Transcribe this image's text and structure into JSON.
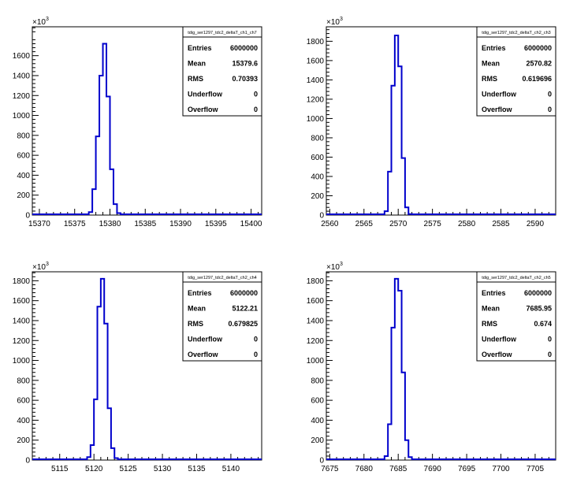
{
  "chart_data": [
    {
      "type": "bar",
      "title": "tdig_ser1297_tdc2_deltaT_ch1_ch7",
      "y_exponent": "3",
      "xlim": [
        15369.0,
        15401.5
      ],
      "ylim": [
        0,
        1890
      ],
      "x_ticks": [
        "15370",
        "15375",
        "15380",
        "15385",
        "15390",
        "15395",
        "15400"
      ],
      "y_ticks": [
        "0",
        "200",
        "400",
        "600",
        "800",
        "1000",
        "1200",
        "1400",
        "1600"
      ],
      "bins": {
        "x": [
          15376.5,
          15377,
          15377.5,
          15378,
          15378.5,
          15379,
          15379.5,
          15380,
          15380.5,
          15381,
          15381.5
        ],
        "values": [
          5,
          30,
          260,
          790,
          1400,
          1720,
          1190,
          460,
          110,
          20,
          3
        ]
      },
      "stats": [
        {
          "label": "Entries",
          "value": "6000000"
        },
        {
          "label": "Mean",
          "value": "15379.6"
        },
        {
          "label": "RMS",
          "value": "0.70393"
        },
        {
          "label": "Underflow",
          "value": "0"
        },
        {
          "label": "Overflow",
          "value": "0"
        }
      ]
    },
    {
      "type": "bar",
      "title": "tdig_ser1297_tdc2_deltaT_ch2_ch3",
      "y_exponent": "3",
      "xlim": [
        2559.5,
        2593.0
      ],
      "ylim": [
        0,
        1950
      ],
      "x_ticks": [
        "2560",
        "2565",
        "2570",
        "2575",
        "2580",
        "2585",
        "2590"
      ],
      "y_ticks": [
        "0",
        "200",
        "400",
        "600",
        "800",
        "1000",
        "1200",
        "1400",
        "1600",
        "1800"
      ],
      "bins": {
        "x": [
          2567.5,
          2568,
          2568.5,
          2569,
          2569.5,
          2570,
          2570.5,
          2571,
          2571.5,
          2572,
          2572.5
        ],
        "values": [
          5,
          40,
          450,
          1340,
          1860,
          1540,
          590,
          80,
          10,
          2,
          0
        ]
      },
      "stats": [
        {
          "label": "Entries",
          "value": "6000000"
        },
        {
          "label": "Mean",
          "value": "2570.82"
        },
        {
          "label": "RMS",
          "value": "0.619696"
        },
        {
          "label": "Underflow",
          "value": "0"
        },
        {
          "label": "Overflow",
          "value": "0"
        }
      ]
    },
    {
      "type": "bar",
      "title": "tdig_ser1297_tdc2_deltaT_ch2_ch4",
      "y_exponent": "3",
      "xlim": [
        5111.0,
        5144.5
      ],
      "ylim": [
        0,
        1890
      ],
      "x_ticks": [
        "5115",
        "5120",
        "5125",
        "5130",
        "5135",
        "5140"
      ],
      "y_ticks": [
        "0",
        "200",
        "400",
        "600",
        "800",
        "1000",
        "1200",
        "1400",
        "1600",
        "1800"
      ],
      "bins": {
        "x": [
          5118.5,
          5119,
          5119.5,
          5120,
          5120.5,
          5121,
          5121.5,
          5122,
          5122.5,
          5123,
          5123.5
        ],
        "values": [
          5,
          30,
          150,
          610,
          1540,
          1820,
          1370,
          520,
          120,
          20,
          3
        ]
      },
      "stats": [
        {
          "label": "Entries",
          "value": "6000000"
        },
        {
          "label": "Mean",
          "value": "5122.21"
        },
        {
          "label": "RMS",
          "value": "0.679825"
        },
        {
          "label": "Underflow",
          "value": "0"
        },
        {
          "label": "Overflow",
          "value": "0"
        }
      ]
    },
    {
      "type": "bar",
      "title": "tdig_ser1297_tdc2_deltaT_ch2_ch5",
      "y_exponent": "3",
      "xlim": [
        7674.5,
        7708.0
      ],
      "ylim": [
        0,
        1890
      ],
      "x_ticks": [
        "7675",
        "7680",
        "7685",
        "7690",
        "7695",
        "7700",
        "7705"
      ],
      "y_ticks": [
        "0",
        "200",
        "400",
        "600",
        "800",
        "1000",
        "1200",
        "1400",
        "1600",
        "1800"
      ],
      "bins": {
        "x": [
          7682.5,
          7683,
          7683.5,
          7684,
          7684.5,
          7685,
          7685.5,
          7686,
          7686.5,
          7687,
          7687.5
        ],
        "values": [
          5,
          40,
          360,
          1330,
          1820,
          1700,
          880,
          200,
          30,
          3,
          0
        ]
      },
      "stats": [
        {
          "label": "Entries",
          "value": "6000000"
        },
        {
          "label": "Mean",
          "value": "7685.95"
        },
        {
          "label": "RMS",
          "value": "0.674"
        },
        {
          "label": "Underflow",
          "value": "0"
        },
        {
          "label": "Overflow",
          "value": "0"
        }
      ]
    }
  ]
}
